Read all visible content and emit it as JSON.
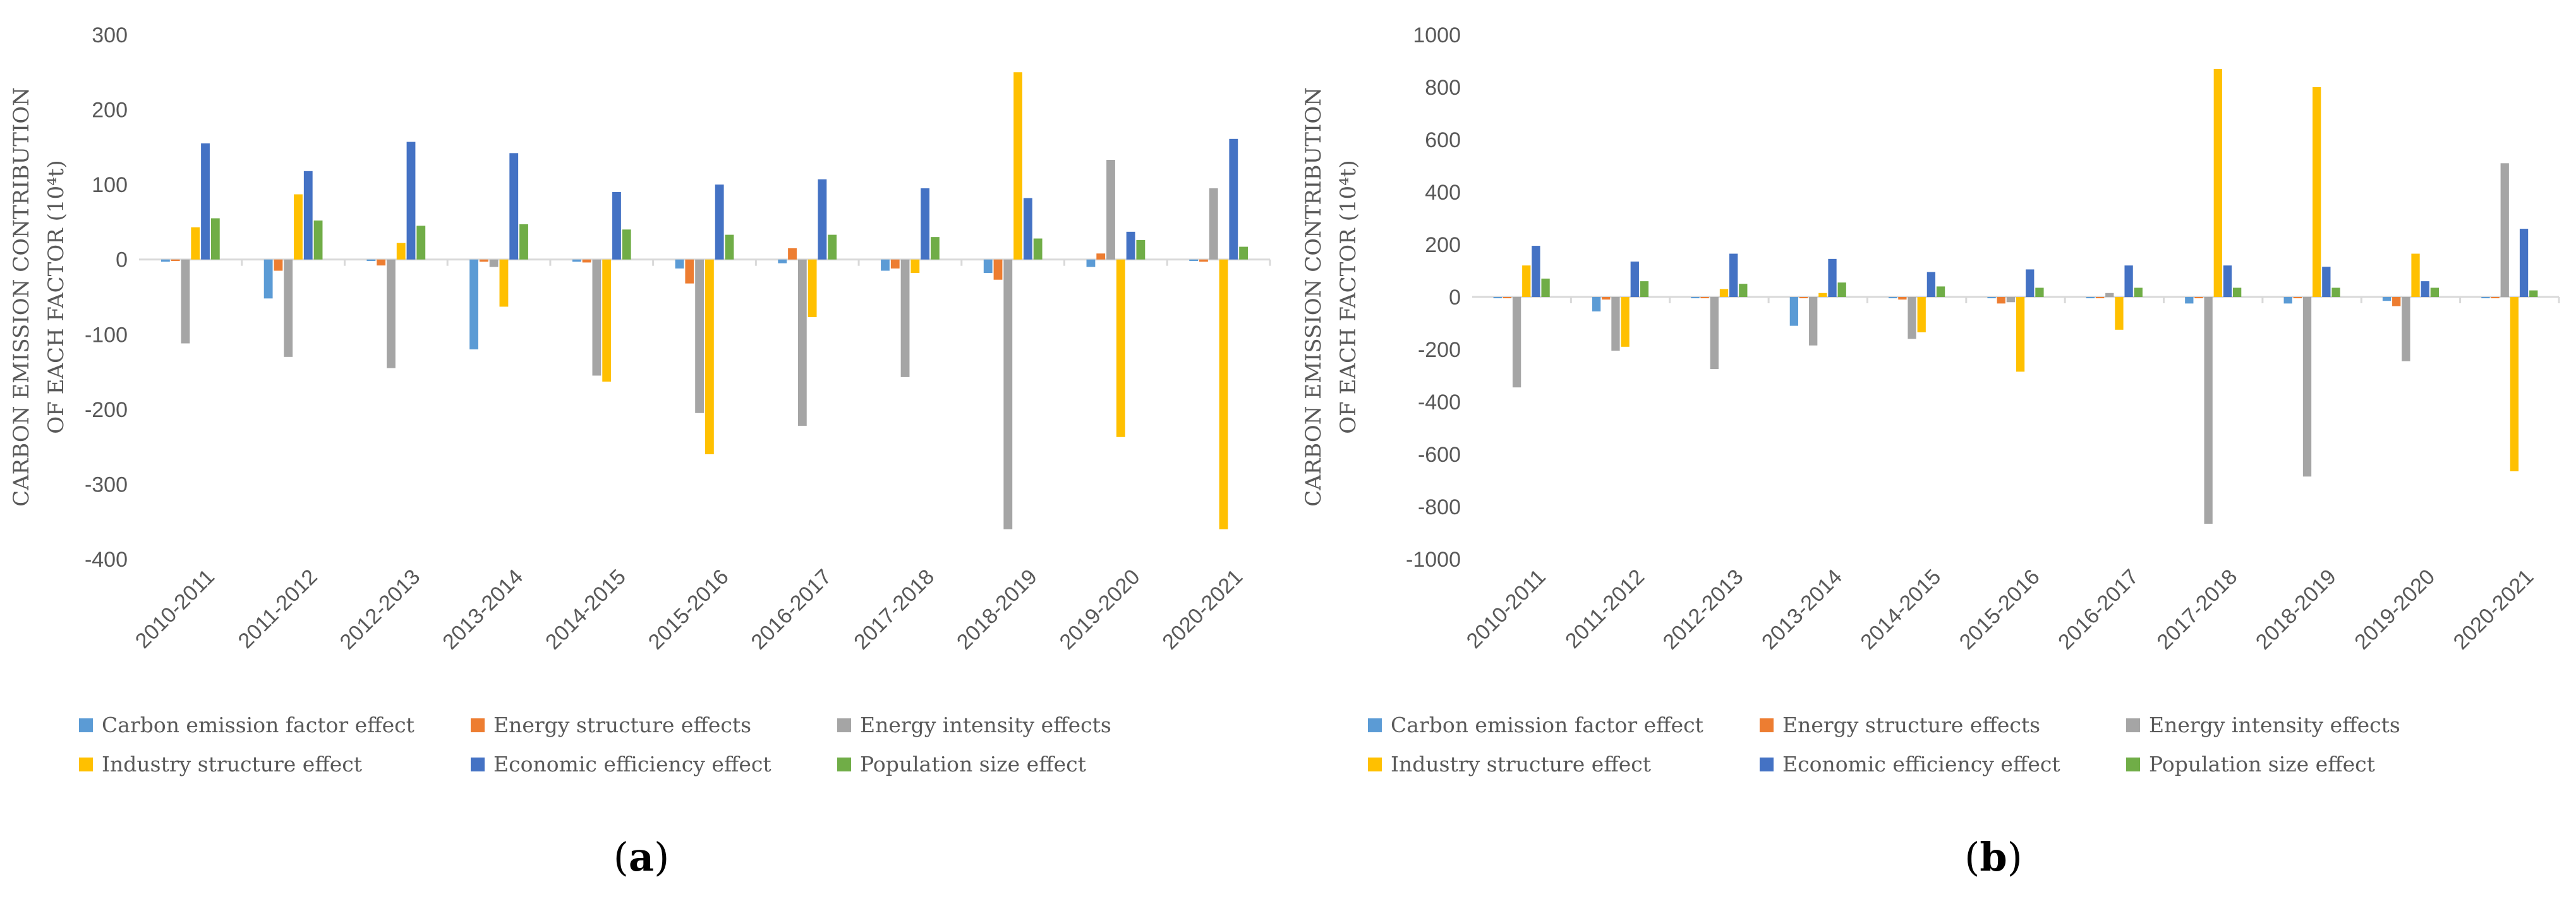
{
  "colors": {
    "carbon": "#5B9BD5",
    "energy_structure": "#ED7D31",
    "energy_intensity": "#A5A5A5",
    "industry": "#FFC000",
    "economic": "#4472C4",
    "population": "#70AD47",
    "axis": "#D9D9D9",
    "text": "#595959"
  },
  "chart_data": [
    {
      "id": "a",
      "caption": {
        "open": "(",
        "letter": "a",
        "close": ")"
      },
      "type": "bar",
      "ylabel_lines": [
        "CARBON EMISSION  CONTRIBUTION",
        "OF  EACH FACTOR (10⁴t)"
      ],
      "ylim": [
        -400,
        300
      ],
      "yticks": [
        -400,
        -300,
        -200,
        -100,
        0,
        100,
        200,
        300
      ],
      "categories": [
        "2010-2011",
        "2011-2012",
        "2012-2013",
        "2013-2014",
        "2014-2015",
        "2015-2016",
        "2016-2017",
        "2017-2018",
        "2018-2019",
        "2019-2020",
        "2020-2021"
      ],
      "series": [
        {
          "name": "Carbon emission factor effect",
          "color_key": "carbon",
          "values": [
            -3,
            -52,
            -2,
            -120,
            -3,
            -12,
            -5,
            -15,
            -18,
            -10,
            -2
          ]
        },
        {
          "name": "Energy structure effects",
          "color_key": "energy_structure",
          "values": [
            -2,
            -15,
            -8,
            -3,
            -4,
            -32,
            15,
            -12,
            -27,
            8,
            -3
          ]
        },
        {
          "name": "Energy intensity effects",
          "color_key": "energy_intensity",
          "values": [
            -112,
            -130,
            -145,
            -10,
            -155,
            -205,
            -222,
            -157,
            -360,
            133,
            95
          ]
        },
        {
          "name": "Industry structure effect",
          "color_key": "industry",
          "values": [
            43,
            87,
            22,
            -63,
            -163,
            -260,
            -77,
            -18,
            250,
            -237,
            -360
          ]
        },
        {
          "name": "Economic efficiency effect",
          "color_key": "economic",
          "values": [
            155,
            118,
            157,
            142,
            90,
            100,
            107,
            95,
            82,
            37,
            161
          ]
        },
        {
          "name": "Population size effect",
          "color_key": "population",
          "values": [
            55,
            52,
            45,
            47,
            40,
            33,
            33,
            30,
            28,
            26,
            17
          ]
        }
      ]
    },
    {
      "id": "b",
      "caption": {
        "open": "(",
        "letter": "b",
        "close": ")"
      },
      "type": "bar",
      "ylabel_lines": [
        "CARBON EMISSION  CONTRIBUTION",
        "OF  EACH FACTOR (10⁴t)"
      ],
      "ylim": [
        -1000,
        1000
      ],
      "yticks": [
        -1000,
        -800,
        -600,
        -400,
        -200,
        0,
        200,
        400,
        600,
        800,
        1000
      ],
      "categories": [
        "2010-2011",
        "2011-2012",
        "2012-2013",
        "2013-2014",
        "2014-2015",
        "2015-2016",
        "2016-2017",
        "2017-2018",
        "2018-2019",
        "2019-2020",
        "2020-2021"
      ],
      "series": [
        {
          "name": "Carbon emission factor effect",
          "color_key": "carbon",
          "values": [
            -5,
            -55,
            -5,
            -110,
            -5,
            -5,
            -5,
            -25,
            -25,
            -15,
            -5
          ]
        },
        {
          "name": "Energy structure effects",
          "color_key": "energy_structure",
          "values": [
            -5,
            -10,
            -5,
            -5,
            -10,
            -25,
            -5,
            -5,
            -5,
            -35,
            -5
          ]
        },
        {
          "name": "Energy intensity effects",
          "color_key": "energy_intensity",
          "values": [
            -345,
            -205,
            -275,
            -185,
            -160,
            -20,
            15,
            -865,
            -685,
            -245,
            510
          ]
        },
        {
          "name": "Industry structure effect",
          "color_key": "industry",
          "values": [
            120,
            -190,
            30,
            15,
            -135,
            -285,
            -125,
            870,
            800,
            165,
            -665
          ]
        },
        {
          "name": "Economic efficiency effect",
          "color_key": "economic",
          "values": [
            195,
            135,
            165,
            145,
            95,
            105,
            120,
            120,
            115,
            60,
            260
          ]
        },
        {
          "name": "Population size effect",
          "color_key": "population",
          "values": [
            70,
            60,
            50,
            55,
            40,
            35,
            35,
            35,
            35,
            35,
            25
          ]
        }
      ]
    }
  ]
}
